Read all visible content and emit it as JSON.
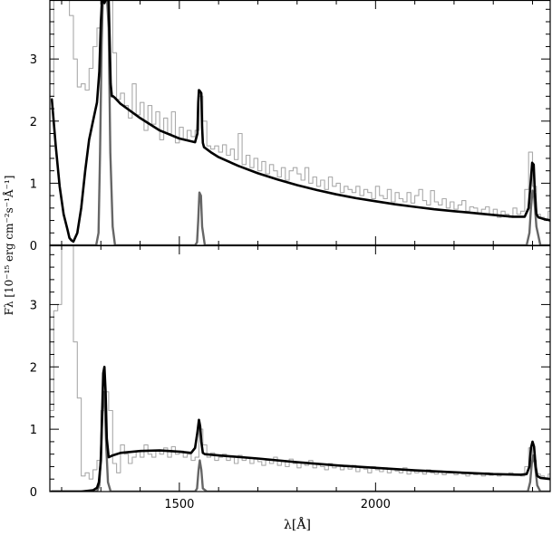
{
  "chart_data": {
    "type": "line",
    "xlabel": "λ[Å]",
    "ylabel": "Fλ [10⁻¹⁵ erg cm⁻²s⁻¹Å⁻¹]",
    "xlim": [
      1170,
      2445
    ],
    "x_ticks": [
      {
        "value": 1500,
        "label": "1500"
      },
      {
        "value": 2000,
        "label": "2000"
      }
    ],
    "grid": false,
    "legend": "none",
    "colors": {
      "model": "#000000",
      "lines": "#666666",
      "observed": "#aaaaaa"
    },
    "panels": [
      {
        "ylim": [
          0,
          3.95
        ],
        "y_ticks": [
          {
            "value": 0,
            "label": "0"
          },
          {
            "value": 1,
            "label": "1"
          },
          {
            "value": 2,
            "label": "2"
          },
          {
            "value": 3,
            "label": "3"
          }
        ],
        "series": [
          {
            "style": "model",
            "x": [
              1175,
              1185,
              1195,
              1205,
              1215,
              1220,
              1225,
              1230,
              1240,
              1250,
              1260,
              1270,
              1280,
              1290,
              1296,
              1300,
              1303,
              1306,
              1309,
              1312,
              1316,
              1320,
              1325,
              1328,
              1331,
              1335,
              1350,
              1400,
              1450,
              1500,
              1540,
              1546,
              1548,
              1550,
              1553,
              1556,
              1558,
              1560,
              1563,
              1580,
              1600,
              1650,
              1700,
              1750,
              1800,
              1850,
              1900,
              1950,
              2000,
              2050,
              2100,
              2150,
              2200,
              2250,
              2300,
              2350,
              2380,
              2390,
              2395,
              2399,
              2403,
              2406,
              2410,
              2415,
              2420,
              2430,
              2440,
              2445
            ],
            "y": [
              2.35,
              1.6,
              0.95,
              0.5,
              0.25,
              0.12,
              0.08,
              0.06,
              0.2,
              0.6,
              1.2,
              1.7,
              2.0,
              2.3,
              2.8,
              3.6,
              4.1,
              4.1,
              3.9,
              4.1,
              4.1,
              4.1,
              2.6,
              2.4,
              2.4,
              2.38,
              2.28,
              2.05,
              1.85,
              1.72,
              1.66,
              1.8,
              2.3,
              2.5,
              2.48,
              2.45,
              1.9,
              1.65,
              1.58,
              1.5,
              1.42,
              1.28,
              1.16,
              1.06,
              0.97,
              0.89,
              0.82,
              0.76,
              0.71,
              0.66,
              0.62,
              0.58,
              0.55,
              0.52,
              0.49,
              0.46,
              0.46,
              0.6,
              1.0,
              1.33,
              1.3,
              0.85,
              0.5,
              0.45,
              0.44,
              0.42,
              0.41,
              0.4
            ]
          },
          {
            "style": "lines",
            "x": [
              1170,
              1288,
              1294,
              1298,
              1302,
              1305,
              1308,
              1312,
              1316,
              1320,
              1324,
              1330,
              1336,
              1500,
              1540,
              1545,
              1548,
              1551,
              1555,
              1558,
              1565,
              1600,
              2370,
              2385,
              2392,
              2396,
              2400,
              2404,
              2410,
              2420,
              2445
            ],
            "y": [
              0,
              0,
              0.2,
              1.5,
              3.2,
              4.1,
              4.1,
              4.1,
              4.1,
              3.5,
              1.5,
              0.3,
              0,
              0,
              0,
              0.05,
              0.4,
              0.85,
              0.8,
              0.3,
              0,
              0,
              0,
              0,
              0.2,
              0.6,
              0.88,
              0.8,
              0.3,
              0,
              0
            ]
          },
          {
            "style": "observed",
            "x": [
              1170,
              1180,
              1190,
              1200,
              1210,
              1220,
              1230,
              1240,
              1250,
              1260,
              1270,
              1280,
              1290,
              1300,
              1310,
              1320,
              1330,
              1340,
              1350,
              1360,
              1370,
              1380,
              1390,
              1400,
              1410,
              1420,
              1430,
              1440,
              1450,
              1460,
              1470,
              1480,
              1490,
              1500,
              1510,
              1520,
              1530,
              1540,
              1550,
              1560,
              1570,
              1580,
              1590,
              1600,
              1610,
              1620,
              1630,
              1640,
              1650,
              1660,
              1670,
              1680,
              1690,
              1700,
              1710,
              1720,
              1730,
              1740,
              1750,
              1760,
              1770,
              1780,
              1790,
              1800,
              1810,
              1820,
              1830,
              1840,
              1850,
              1860,
              1870,
              1880,
              1890,
              1900,
              1910,
              1920,
              1930,
              1940,
              1950,
              1960,
              1970,
              1980,
              1990,
              2000,
              2010,
              2020,
              2030,
              2040,
              2050,
              2060,
              2070,
              2080,
              2090,
              2100,
              2110,
              2120,
              2130,
              2140,
              2150,
              2160,
              2170,
              2180,
              2190,
              2200,
              2210,
              2220,
              2230,
              2240,
              2250,
              2260,
              2270,
              2280,
              2290,
              2300,
              2310,
              2320,
              2330,
              2340,
              2350,
              2360,
              2370,
              2380,
              2390,
              2400,
              2410,
              2420,
              2430,
              2440
            ],
            "y": [
              2.4,
              3.95,
              3.95,
              3.95,
              3.95,
              3.7,
              3.0,
              2.55,
              2.6,
              2.5,
              2.85,
              3.2,
              3.5,
              3.95,
              3.95,
              3.95,
              3.1,
              2.35,
              2.45,
              2.25,
              2.05,
              2.6,
              2.1,
              2.3,
              1.85,
              2.25,
              1.95,
              2.15,
              1.7,
              2.05,
              1.8,
              2.15,
              1.65,
              1.9,
              1.7,
              1.85,
              1.75,
              1.85,
              2.4,
              2.0,
              1.6,
              1.55,
              1.6,
              1.5,
              1.62,
              1.45,
              1.55,
              1.38,
              1.8,
              1.3,
              1.45,
              1.25,
              1.4,
              1.2,
              1.35,
              1.15,
              1.3,
              1.2,
              1.1,
              1.25,
              1.05,
              1.2,
              1.25,
              1.15,
              1.05,
              1.25,
              1.0,
              1.1,
              0.95,
              1.05,
              0.9,
              1.1,
              0.95,
              1.0,
              0.85,
              0.95,
              0.9,
              0.85,
              0.95,
              0.8,
              0.9,
              0.85,
              0.75,
              0.95,
              0.8,
              0.75,
              0.9,
              0.7,
              0.85,
              0.75,
              0.7,
              0.85,
              0.68,
              0.8,
              0.9,
              0.72,
              0.65,
              0.88,
              0.7,
              0.65,
              0.75,
              0.6,
              0.7,
              0.58,
              0.65,
              0.72,
              0.55,
              0.62,
              0.6,
              0.5,
              0.58,
              0.62,
              0.5,
              0.58,
              0.45,
              0.55,
              0.5,
              0.45,
              0.6,
              0.5,
              0.55,
              0.9,
              1.5,
              0.95,
              0.5,
              0.45,
              0.4,
              0.55
            ]
          }
        ]
      },
      {
        "ylim": [
          0,
          3.95
        ],
        "y_ticks": [
          {
            "value": 0,
            "label": "0"
          },
          {
            "value": 1,
            "label": "1"
          },
          {
            "value": 2,
            "label": "2"
          },
          {
            "value": 3,
            "label": "3"
          }
        ],
        "series": [
          {
            "style": "model",
            "x": [
              1175,
              1250,
              1280,
              1290,
              1295,
              1300,
              1303,
              1306,
              1309,
              1312,
              1315,
              1320,
              1330,
              1350,
              1400,
              1450,
              1500,
              1530,
              1540,
              1546,
              1550,
              1553,
              1556,
              1560,
              1565,
              1600,
              1700,
              1800,
              1900,
              2000,
              2100,
              2200,
              2300,
              2370,
              2385,
              2392,
              2396,
              2400,
              2404,
              2408,
              2412,
              2420,
              2445
            ],
            "y": [
              0,
              0,
              0.02,
              0.06,
              0.15,
              0.5,
              1.2,
              1.9,
              2.0,
              1.6,
              0.85,
              0.55,
              0.58,
              0.62,
              0.65,
              0.66,
              0.64,
              0.62,
              0.7,
              0.95,
              1.15,
              1.05,
              0.8,
              0.62,
              0.6,
              0.58,
              0.53,
              0.47,
              0.42,
              0.38,
              0.34,
              0.31,
              0.28,
              0.27,
              0.28,
              0.4,
              0.7,
              0.8,
              0.72,
              0.4,
              0.25,
              0.22,
              0.2
            ]
          },
          {
            "style": "lines",
            "x": [
              1170,
              1290,
              1296,
              1300,
              1304,
              1307,
              1310,
              1314,
              1318,
              1325,
              1500,
              1540,
              1545,
              1549,
              1552,
              1556,
              1560,
              1570,
              2370,
              2388,
              2394,
              2398,
              2402,
              2406,
              2412,
              2420,
              2445
            ],
            "y": [
              0,
              0,
              0.1,
              0.6,
              1.3,
              1.6,
              1.4,
              0.7,
              0.15,
              0,
              0,
              0,
              0.05,
              0.35,
              0.5,
              0.35,
              0.05,
              0,
              0,
              0,
              0.15,
              0.45,
              0.58,
              0.45,
              0.1,
              0,
              0
            ]
          },
          {
            "style": "observed",
            "x": [
              1170,
              1180,
              1190,
              1200,
              1210,
              1220,
              1230,
              1240,
              1250,
              1260,
              1270,
              1280,
              1290,
              1300,
              1310,
              1320,
              1330,
              1340,
              1350,
              1360,
              1370,
              1380,
              1390,
              1400,
              1410,
              1420,
              1430,
              1440,
              1450,
              1460,
              1470,
              1480,
              1490,
              1500,
              1510,
              1520,
              1530,
              1540,
              1550,
              1560,
              1570,
              1580,
              1590,
              1600,
              1610,
              1620,
              1630,
              1640,
              1650,
              1660,
              1670,
              1680,
              1690,
              1700,
              1710,
              1720,
              1730,
              1740,
              1750,
              1760,
              1770,
              1780,
              1790,
              1800,
              1810,
              1820,
              1830,
              1840,
              1850,
              1860,
              1870,
              1880,
              1890,
              1900,
              1910,
              1920,
              1930,
              1940,
              1950,
              1960,
              1970,
              1980,
              1990,
              2000,
              2010,
              2020,
              2030,
              2040,
              2050,
              2060,
              2070,
              2080,
              2090,
              2100,
              2110,
              2120,
              2130,
              2140,
              2150,
              2160,
              2170,
              2180,
              2190,
              2200,
              2210,
              2220,
              2230,
              2240,
              2250,
              2260,
              2270,
              2280,
              2290,
              2300,
              2310,
              2320,
              2330,
              2340,
              2350,
              2360,
              2370,
              2380,
              2390,
              2400,
              2410,
              2420,
              2430,
              2440
            ],
            "y": [
              1.3,
              2.9,
              3.0,
              3.95,
              3.95,
              3.95,
              2.4,
              1.5,
              0.25,
              0.3,
              0.2,
              0.35,
              0.5,
              1.3,
              1.6,
              1.3,
              0.45,
              0.3,
              0.75,
              0.6,
              0.45,
              0.55,
              0.65,
              0.55,
              0.75,
              0.6,
              0.55,
              0.65,
              0.6,
              0.7,
              0.55,
              0.72,
              0.6,
              0.65,
              0.55,
              0.6,
              0.5,
              0.55,
              1.0,
              0.75,
              0.55,
              0.62,
              0.5,
              0.55,
              0.6,
              0.5,
              0.55,
              0.45,
              0.58,
              0.5,
              0.55,
              0.45,
              0.52,
              0.48,
              0.42,
              0.5,
              0.45,
              0.55,
              0.42,
              0.48,
              0.4,
              0.52,
              0.45,
              0.38,
              0.45,
              0.42,
              0.5,
              0.38,
              0.45,
              0.4,
              0.35,
              0.45,
              0.38,
              0.42,
              0.35,
              0.4,
              0.36,
              0.42,
              0.32,
              0.38,
              0.36,
              0.3,
              0.4,
              0.35,
              0.32,
              0.38,
              0.3,
              0.36,
              0.33,
              0.3,
              0.38,
              0.28,
              0.34,
              0.3,
              0.32,
              0.28,
              0.35,
              0.3,
              0.28,
              0.33,
              0.27,
              0.3,
              0.32,
              0.27,
              0.3,
              0.28,
              0.25,
              0.3,
              0.27,
              0.28,
              0.25,
              0.3,
              0.26,
              0.28,
              0.25,
              0.27,
              0.28,
              0.3,
              0.26,
              0.28,
              0.25,
              0.4,
              0.7,
              0.5,
              0.28,
              0.25,
              0.22,
              0.28
            ]
          }
        ]
      }
    ]
  }
}
